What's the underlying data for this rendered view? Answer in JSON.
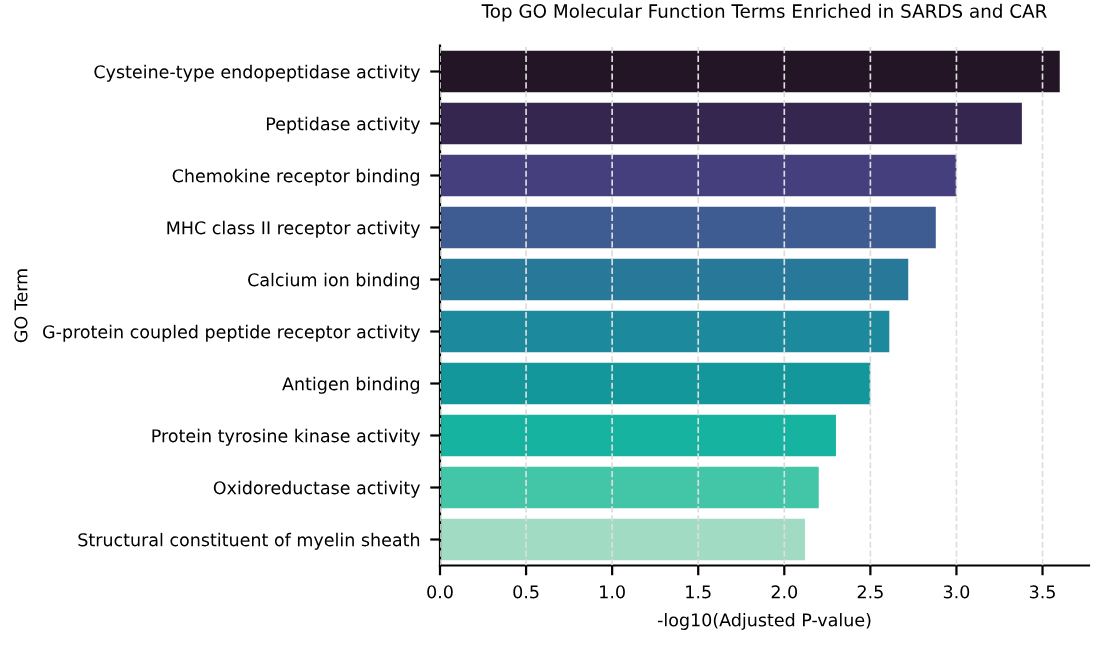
{
  "chart_data": {
    "type": "bar",
    "orientation": "horizontal",
    "title": "Top GO Molecular Function Terms Enriched in SARDS and CAR",
    "xlabel": "-log10(Adjusted P-value)",
    "ylabel": "GO Term",
    "categories": [
      "Cysteine-type endopeptidase activity",
      "Peptidase activity",
      "Chemokine receptor binding",
      "MHC class II receptor activity",
      "Calcium ion binding",
      "G-protein coupled peptide receptor activity",
      "Antigen binding",
      "Protein tyrosine kinase activity",
      "Oxidoreductase activity",
      "Structural constituent of myelin sheath"
    ],
    "values": [
      3.6,
      3.38,
      3.0,
      2.88,
      2.72,
      2.61,
      2.5,
      2.3,
      2.2,
      2.12
    ],
    "colors": [
      "#231526",
      "#35264f",
      "#463f7e",
      "#3e5b92",
      "#28789a",
      "#1c8a9c",
      "#13979b",
      "#15b3a0",
      "#43c6a8",
      "#a2dbc4"
    ],
    "xlim": [
      0,
      3.77
    ],
    "xticks": [
      {
        "value": 0,
        "label": "0.0"
      },
      0.5,
      {
        "value": 1,
        "label": "1.0"
      },
      1.5,
      {
        "value": 2,
        "label": "2.0"
      },
      2.5,
      {
        "value": 3,
        "label": "3.0"
      },
      3.5
    ],
    "grid": "x"
  }
}
